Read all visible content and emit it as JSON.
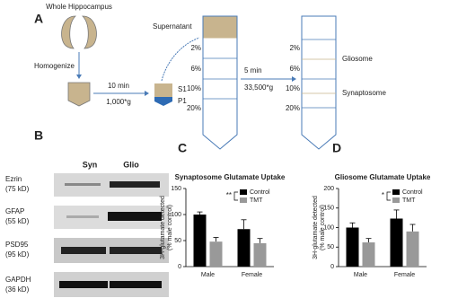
{
  "panels": [
    "A",
    "B",
    "C",
    "D"
  ],
  "diagram": {
    "whole": "Whole Hippocampus",
    "homogenize": "Homogenize",
    "spin1_time": "10 min",
    "spin1_force": "1,000*g",
    "s1": "S1",
    "p1": "P1",
    "supernatant": "Supernatant",
    "gradient": [
      "2%",
      "6%",
      "10%",
      "20%"
    ],
    "spin2_time": "5 min",
    "spin2_force": "33,500*g",
    "gradient2": [
      "2%",
      "6%",
      "10%",
      "20%"
    ],
    "gliosome": "Gliosome",
    "synaptosome": "Synaptosome"
  },
  "blot": {
    "columns": [
      "Syn",
      "Glio"
    ],
    "rows": [
      [
        "Ezrin",
        "(75 kD)"
      ],
      [
        "GFAP",
        "(55 kD)"
      ],
      [
        "PSD95",
        "(95 kD)"
      ],
      [
        "GAPDH",
        "(36 kD)"
      ]
    ]
  },
  "chart_data": [
    {
      "type": "bar",
      "title": "Synaptosome Glutamate Uptake",
      "ylabel": [
        "3H-glutamate detected",
        "(% male control)"
      ],
      "categories": [
        "Male",
        "Female"
      ],
      "series": [
        {
          "name": "Control",
          "color": "#000000",
          "values": [
            100,
            72
          ],
          "errors": [
            5,
            18
          ]
        },
        {
          "name": "TMT",
          "color": "#999999",
          "values": [
            48,
            45
          ],
          "errors": [
            8,
            9
          ]
        }
      ],
      "ylim": [
        0,
        150
      ],
      "yticks": [
        0,
        50,
        100,
        150
      ],
      "annotation": "**"
    },
    {
      "type": "bar",
      "title": "Gliosome Glutamate Uptake",
      "ylabel": [
        "3H-glutamate detected",
        "(% male control)"
      ],
      "categories": [
        "Male",
        "Female"
      ],
      "series": [
        {
          "name": "Control",
          "color": "#000000",
          "values": [
            100,
            123
          ],
          "errors": [
            12,
            22
          ]
        },
        {
          "name": "TMT",
          "color": "#999999",
          "values": [
            62,
            90
          ],
          "errors": [
            10,
            18
          ]
        }
      ],
      "ylim": [
        0,
        200
      ],
      "yticks": [
        0,
        50,
        100,
        150,
        200
      ],
      "annotation": "*"
    }
  ]
}
